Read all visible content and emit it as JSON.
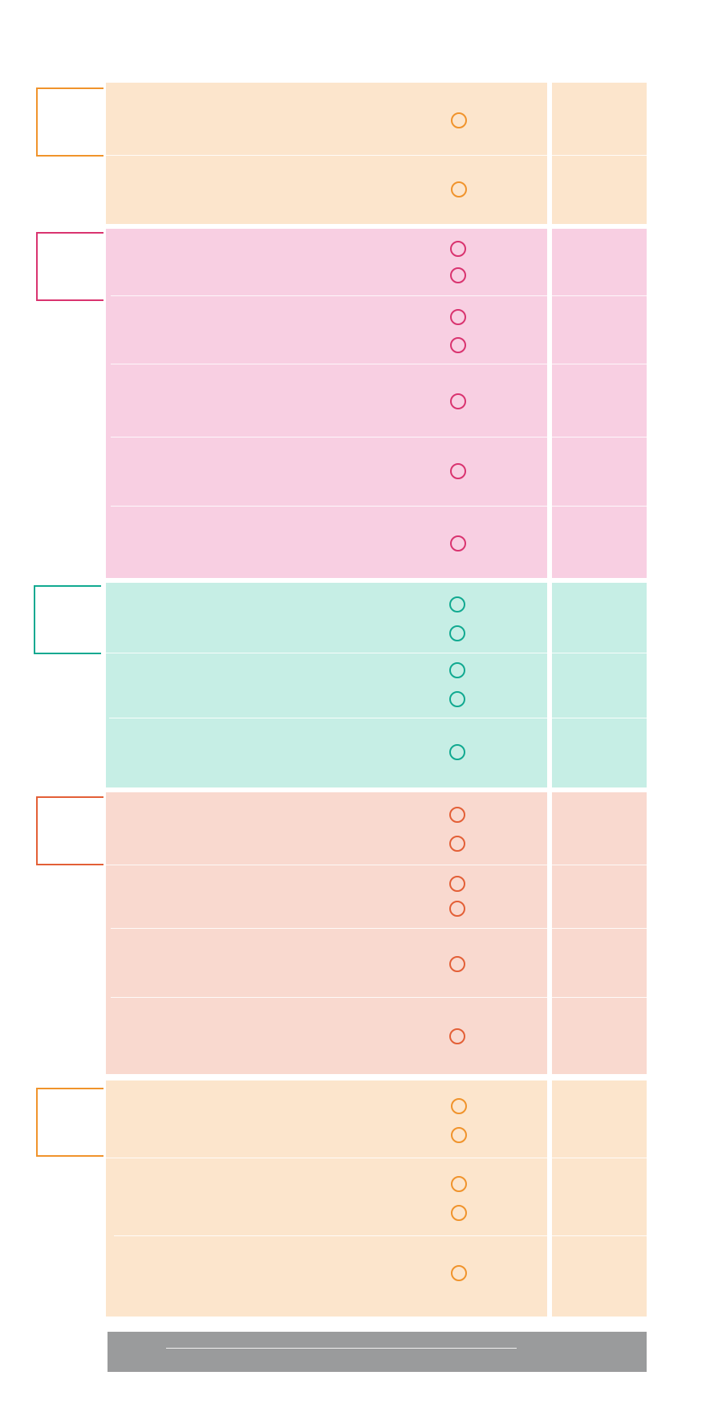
{
  "colors": {
    "orange_fill": "#fce5cc",
    "orange_stroke": "#f0932b",
    "pink_fill": "#f8cfe2",
    "pink_stroke": "#d9336f",
    "teal_fill": "#c6eee5",
    "teal_stroke": "#10a990",
    "salmon_fill": "#f9d9cf",
    "salmon_stroke": "#e35f36",
    "footer_fill": "#9a9b9c"
  },
  "icons": {
    "group_marker": "open-bracket-icon",
    "row_marker": "hollow-circle-icon"
  },
  "groups": [
    {
      "color": "orange",
      "rows": [
        {
          "circles": 1
        },
        {
          "circles": 1
        }
      ]
    },
    {
      "color": "pink",
      "rows": [
        {
          "circles": 2
        },
        {
          "circles": 2
        },
        {
          "circles": 1
        },
        {
          "circles": 1
        },
        {
          "circles": 1
        }
      ]
    },
    {
      "color": "teal",
      "rows": [
        {
          "circles": 2
        },
        {
          "circles": 2
        },
        {
          "circles": 1
        }
      ]
    },
    {
      "color": "salmon",
      "rows": [
        {
          "circles": 2
        },
        {
          "circles": 2
        },
        {
          "circles": 1
        },
        {
          "circles": 1
        }
      ]
    },
    {
      "color": "orange",
      "rows": [
        {
          "circles": 2
        },
        {
          "circles": 2
        },
        {
          "circles": 1
        }
      ]
    }
  ]
}
